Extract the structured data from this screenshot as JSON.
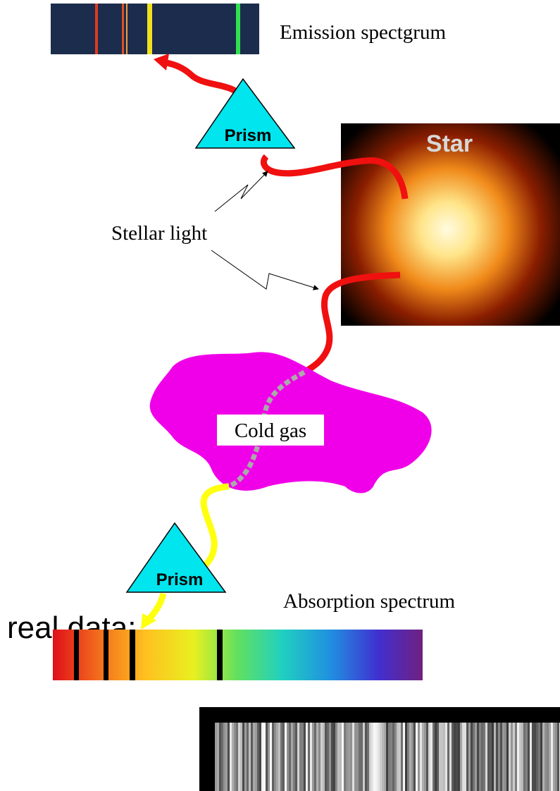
{
  "emission_label": "Emission spectgrum",
  "prism_top": "Prism",
  "star_label": "Star",
  "stellar_light": "Stellar light",
  "cold_gas": "Cold gas",
  "prism_bottom": "Prism",
  "absorption_label": "Absorption spectrum",
  "real_data": "real data:"
}
